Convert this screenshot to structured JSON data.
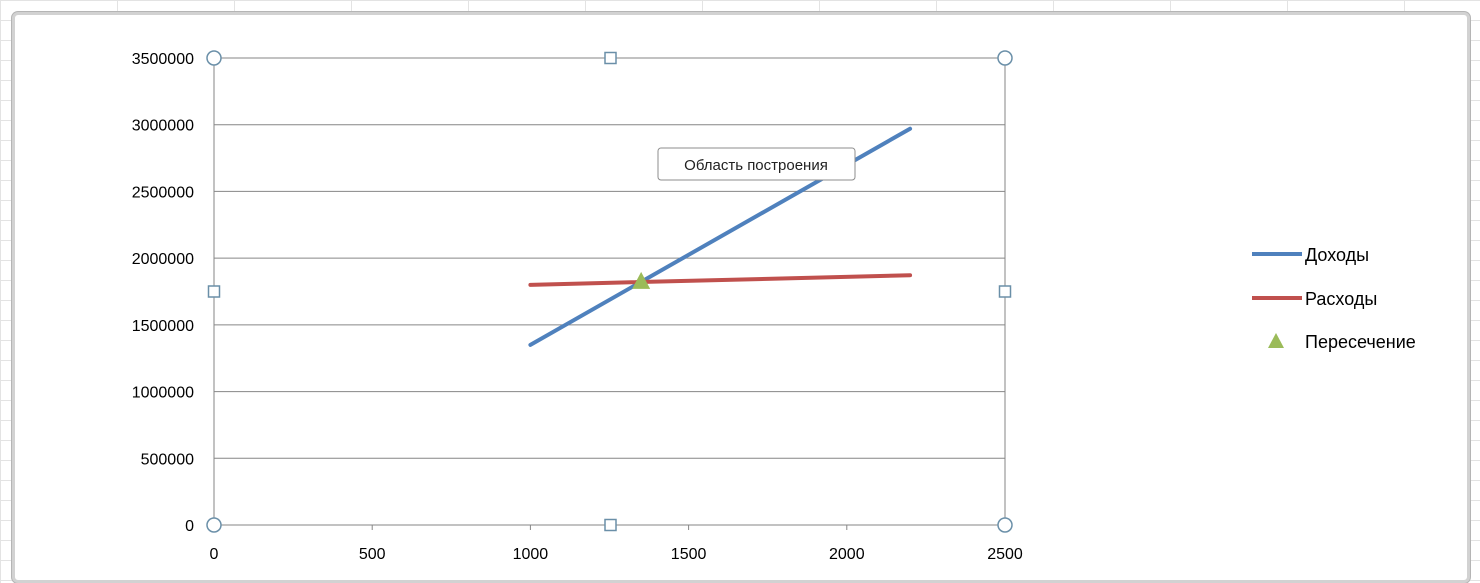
{
  "chart_data": {
    "type": "line",
    "title": "",
    "xlabel": "",
    "ylabel": "",
    "xlim": [
      0,
      2500
    ],
    "ylim": [
      0,
      3500000
    ],
    "x_ticks": [
      "0",
      "500",
      "1000",
      "1500",
      "2000",
      "2500"
    ],
    "y_ticks": [
      "0",
      "500000",
      "1000000",
      "1500000",
      "2000000",
      "2500000",
      "3000000",
      "3500000"
    ],
    "grid": "horizontal",
    "legend_position": "right",
    "series": [
      {
        "name": "Доходы",
        "type": "line",
        "color": "#4f81bd",
        "points": [
          [
            1000,
            1350000
          ],
          [
            2200,
            2970000
          ]
        ]
      },
      {
        "name": "Расходы",
        "type": "line",
        "color": "#c0504d",
        "points": [
          [
            1000,
            1800000
          ],
          [
            2200,
            1872000
          ]
        ]
      },
      {
        "name": "Пересечение",
        "type": "scatter",
        "marker": "triangle",
        "color": "#9bbb59",
        "points": [
          [
            1350,
            1822000
          ]
        ]
      }
    ],
    "tooltip": "Область построения"
  }
}
